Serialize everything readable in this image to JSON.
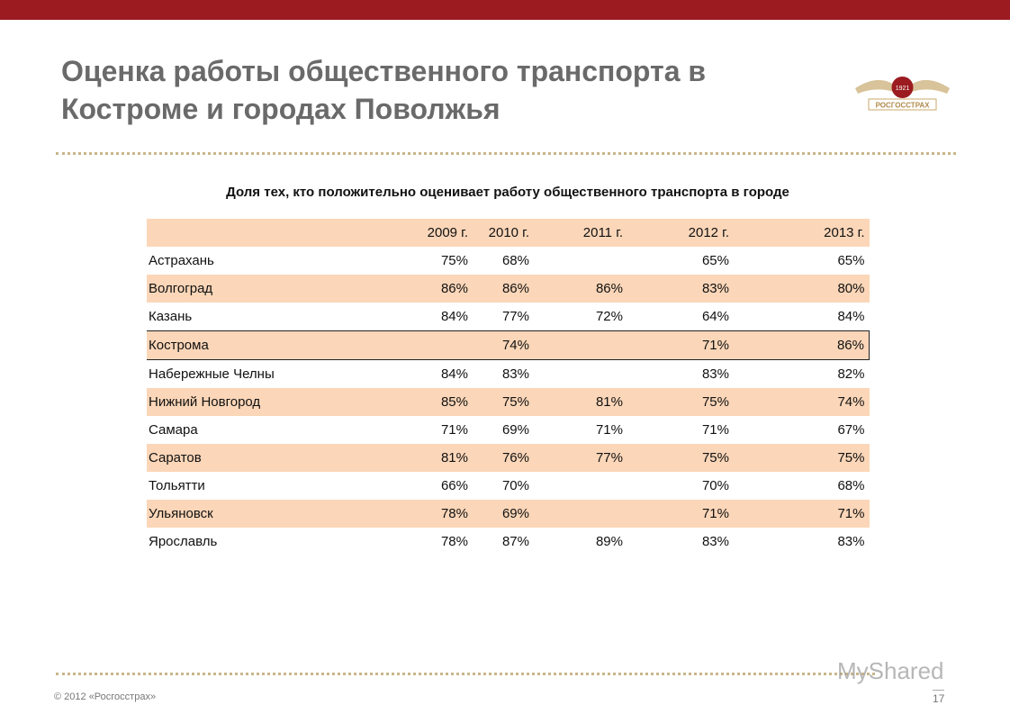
{
  "header": {
    "title_lines": [
      "Оценка работы общественного транспорта в",
      "Костроме и городах Поволжья"
    ],
    "logo": {
      "year": "1921",
      "brand": "РОСГОССТРАХ"
    }
  },
  "table": {
    "caption": "Доля тех, кто положительно оценивает работу общественного транспорта в городе",
    "columns": [
      null,
      "2009 г.",
      "2010 г.",
      "2011 г.",
      "2012 г.",
      "2013 г."
    ],
    "rows": [
      [
        "Астрахань",
        "75%",
        "68%",
        null,
        "65%",
        "65%"
      ],
      [
        "Волгоград",
        "86%",
        "86%",
        "86%",
        "83%",
        "80%"
      ],
      [
        "Казань",
        "84%",
        "77%",
        "72%",
        "64%",
        "84%"
      ],
      [
        "Кострома",
        null,
        "74%",
        null,
        "71%",
        "86%"
      ],
      [
        "Набережные Челны",
        "84%",
        "83%",
        null,
        "83%",
        "82%"
      ],
      [
        "Нижний Новгород",
        "85%",
        "75%",
        "81%",
        "75%",
        "74%"
      ],
      [
        "Самара",
        "71%",
        "69%",
        "71%",
        "71%",
        "67%"
      ],
      [
        "Саратов",
        "81%",
        "76%",
        "77%",
        "75%",
        "75%"
      ],
      [
        "Тольятти",
        "66%",
        "70%",
        null,
        "70%",
        "68%"
      ],
      [
        "Ульяновск",
        "78%",
        "69%",
        null,
        "71%",
        "71%"
      ],
      [
        "Ярославль",
        "78%",
        "87%",
        "89%",
        "83%",
        "83%"
      ]
    ]
  },
  "footer": {
    "copyright": "© 2012 «Росгосстрах»",
    "page": "17",
    "watermark": "MyShared"
  }
}
